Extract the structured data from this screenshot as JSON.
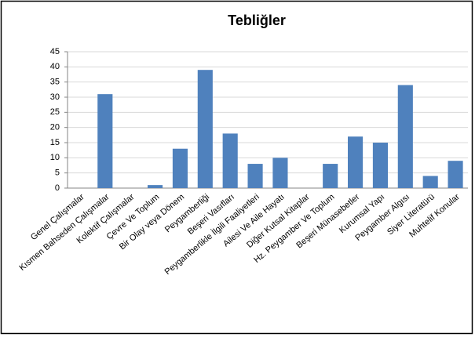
{
  "chart_data": {
    "type": "bar",
    "title": "Tebliğler",
    "categories": [
      "Genel Çalışmalar",
      "Kısmen Bahseden Çalışmalar",
      "Kolektif Çalışmalar",
      "Çevre Ve Toplum",
      "Bir Olay veya Dönem",
      "Peygamberliği",
      "Beşeri Vasıfları",
      "Peygamberlikle İlgili Faaliyetleri",
      "Ailesi Ve Aile Hayatı",
      "Diğer Kutsal Kitaplar",
      "Hz. Peygamber Ve Toplum",
      "Beşeri Münasebetler",
      "Kurumsal Yapı",
      "Peygamber Algısı",
      "Siyer Literatürü",
      "Muhtelif Konular"
    ],
    "values": [
      0,
      31,
      0,
      1,
      13,
      39,
      18,
      8,
      10,
      0,
      8,
      17,
      15,
      34,
      4,
      9
    ],
    "color": "#4f81bd",
    "ylim": [
      0,
      45
    ],
    "yticks": [
      0,
      5,
      10,
      15,
      20,
      25,
      30,
      35,
      40,
      45
    ],
    "grid": true
  }
}
